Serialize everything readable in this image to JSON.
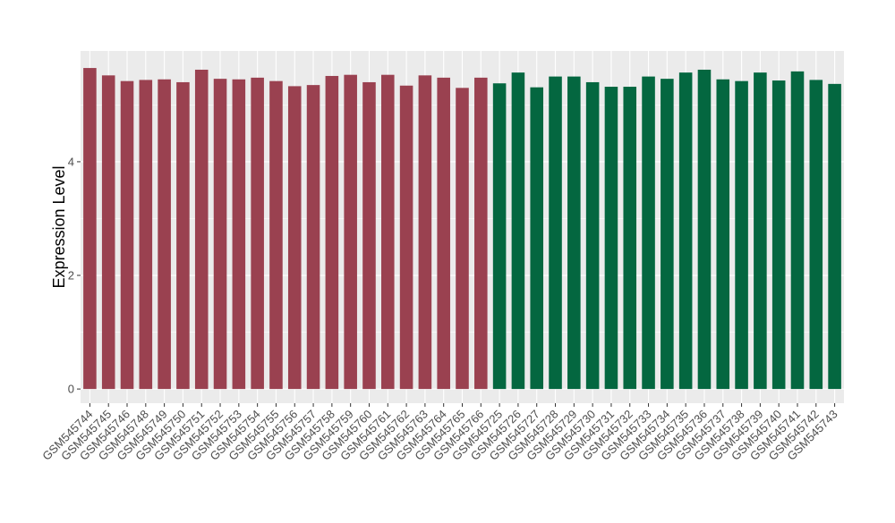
{
  "chart_data": {
    "type": "bar",
    "title": "",
    "xlabel": "",
    "ylabel": "Expression Level",
    "ylim": [
      -0.25,
      5.95
    ],
    "yticks": [
      0,
      2,
      4
    ],
    "grid": true,
    "legend": "none",
    "categories": [
      "GSM545744",
      "GSM545745",
      "GSM545746",
      "GSM545748",
      "GSM545749",
      "GSM545750",
      "GSM545751",
      "GSM545752",
      "GSM545753",
      "GSM545754",
      "GSM545755",
      "GSM545756",
      "GSM545757",
      "GSM545758",
      "GSM545759",
      "GSM545760",
      "GSM545761",
      "GSM545762",
      "GSM545763",
      "GSM545764",
      "GSM545765",
      "GSM545766",
      "GSM545725",
      "GSM545726",
      "GSM545727",
      "GSM545728",
      "GSM545729",
      "GSM545730",
      "GSM545731",
      "GSM545732",
      "GSM545733",
      "GSM545734",
      "GSM545735",
      "GSM545736",
      "GSM545737",
      "GSM545738",
      "GSM545739",
      "GSM545740",
      "GSM545741",
      "GSM545742",
      "GSM545743"
    ],
    "values": [
      5.65,
      5.52,
      5.42,
      5.44,
      5.45,
      5.4,
      5.62,
      5.46,
      5.45,
      5.48,
      5.42,
      5.33,
      5.35,
      5.51,
      5.53,
      5.4,
      5.53,
      5.34,
      5.52,
      5.48,
      5.3,
      5.48,
      5.38,
      5.57,
      5.31,
      5.5,
      5.5,
      5.4,
      5.32,
      5.32,
      5.5,
      5.46,
      5.57,
      5.62,
      5.45,
      5.42,
      5.57,
      5.43,
      5.59,
      5.44,
      5.37
    ],
    "groups": [
      {
        "color": "#9a4150",
        "count": 22
      },
      {
        "color": "#046740",
        "count": 19
      }
    ],
    "panel_background": "#ebebeb",
    "grid_color": "#ffffff"
  }
}
